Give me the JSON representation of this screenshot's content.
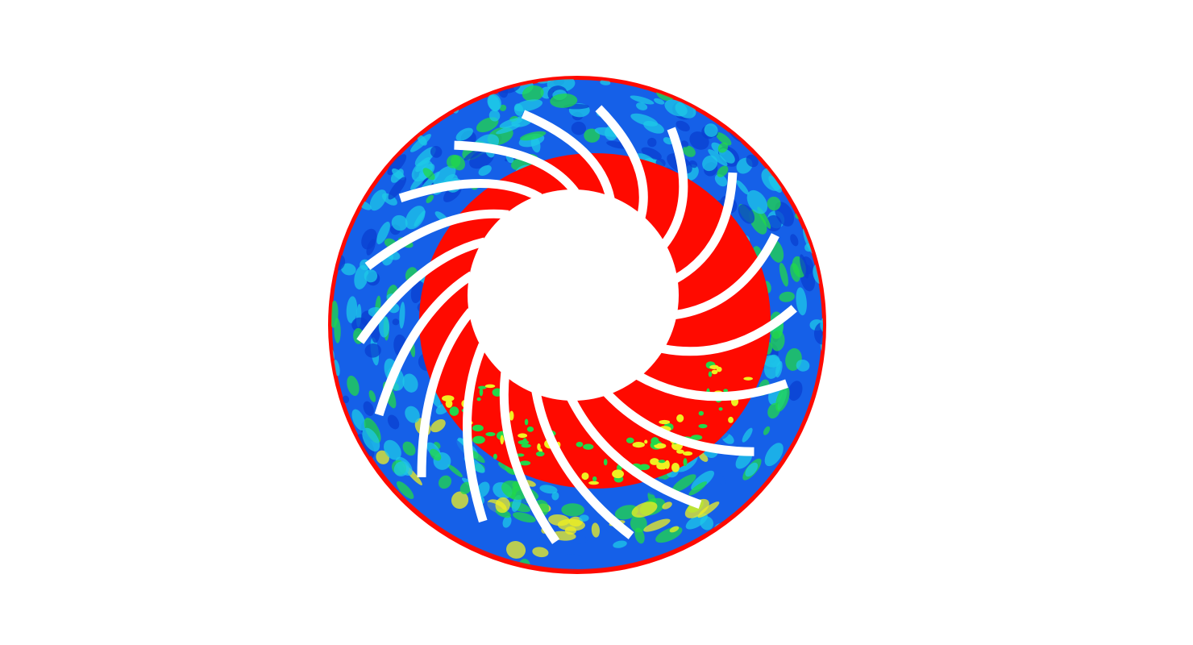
{
  "figure": {
    "description_type": "cfd-contour-annulus",
    "blade_count": 18,
    "colors": {
      "background": "#ffffff",
      "low": "#1560e8",
      "mid_low": "#1ec8e8",
      "mid": "#22d84a",
      "mid_high": "#f0f020",
      "high": "#ff0a00",
      "blade": "#ffffff"
    }
  }
}
